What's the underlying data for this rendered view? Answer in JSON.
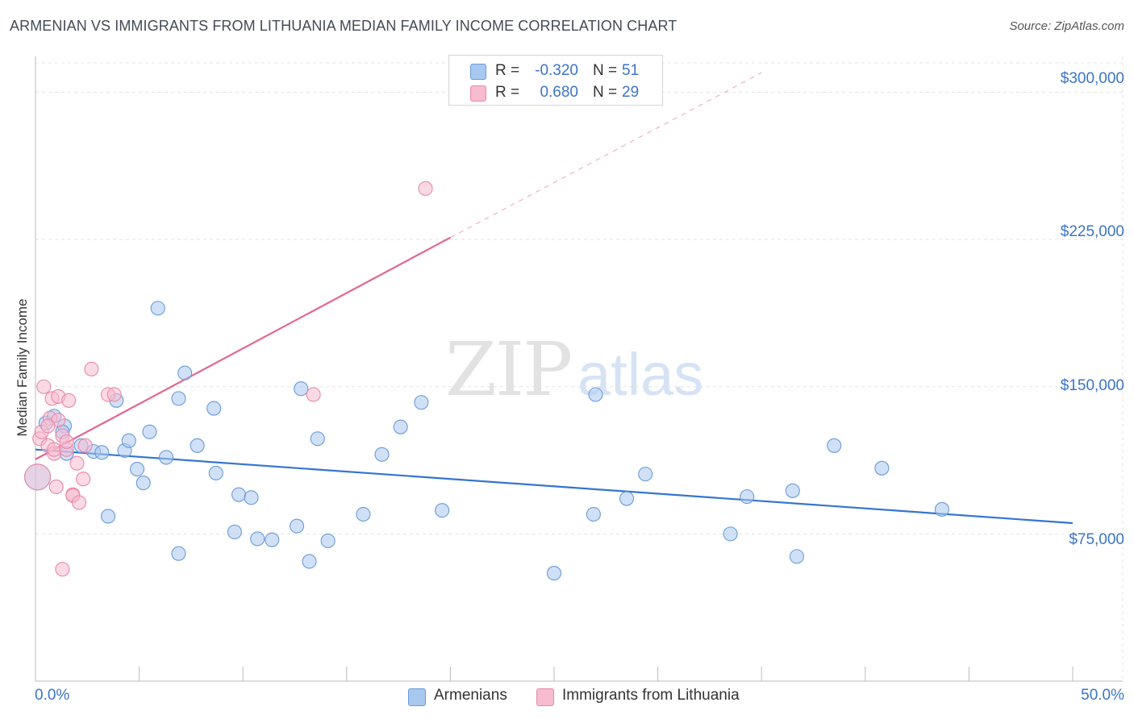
{
  "header": {
    "title": "ARMENIAN VS IMMIGRANTS FROM LITHUANIA MEDIAN FAMILY INCOME CORRELATION CHART",
    "source": "Source: ZipAtlas.com"
  },
  "watermark": {
    "zip": "ZIP",
    "atlas": "atlas"
  },
  "legend": {
    "r_label": "R =",
    "n_label": "N =",
    "series": [
      {
        "name": "Armenians",
        "r": "-0.320",
        "n": "51",
        "color": "#a9c8f0",
        "edge": "#6a9ad8"
      },
      {
        "name": "Immigrants from Lithuania",
        "r": "0.680",
        "n": "29",
        "color": "#f7bccf",
        "edge": "#e889a8"
      }
    ]
  },
  "chart_data": {
    "type": "scatter",
    "title": "ARMENIAN VS IMMIGRANTS FROM LITHUANIA MEDIAN FAMILY INCOME CORRELATION CHART",
    "xlabel": "",
    "ylabel": "Median Family Income",
    "xlim": [
      0,
      50
    ],
    "ylim": [
      0,
      315000
    ],
    "x_tick_labels": [
      "0.0%",
      "50.0%"
    ],
    "y_ticks": [
      {
        "value": 75000,
        "label": "$75,000"
      },
      {
        "value": 150000,
        "label": "$150,000"
      },
      {
        "value": 225000,
        "label": "$225,000"
      },
      {
        "value": 300000,
        "label": "$300,000"
      }
    ],
    "series": [
      {
        "name": "Armenians",
        "color": "#a9c8f0",
        "line_color": "#3575d0",
        "trend": {
          "x0": 0,
          "y0": 118000,
          "x1": 50,
          "y1": 80500,
          "dashed_to": null
        },
        "points": [
          [
            0.1,
            104000,
            "big"
          ],
          [
            0.5,
            131500
          ],
          [
            0.9,
            135000
          ],
          [
            1.4,
            130000
          ],
          [
            1.3,
            127000
          ],
          [
            1.5,
            116000
          ],
          [
            2.2,
            120000
          ],
          [
            2.8,
            117000
          ],
          [
            3.2,
            116500
          ],
          [
            4.3,
            117500
          ],
          [
            4.5,
            122500
          ],
          [
            3.5,
            84000
          ],
          [
            3.9,
            143000
          ],
          [
            4.9,
            108000
          ],
          [
            5.2,
            101000
          ],
          [
            5.5,
            127000
          ],
          [
            5.9,
            190000
          ],
          [
            6.3,
            114000
          ],
          [
            6.9,
            65000
          ],
          [
            6.9,
            144000
          ],
          [
            7.2,
            157000
          ],
          [
            7.8,
            120000
          ],
          [
            8.6,
            139000
          ],
          [
            8.7,
            106000
          ],
          [
            9.6,
            76000
          ],
          [
            9.8,
            95000
          ],
          [
            10.4,
            93500
          ],
          [
            10.7,
            72500
          ],
          [
            11.4,
            72000
          ],
          [
            12.6,
            79000
          ],
          [
            12.8,
            149000
          ],
          [
            13.2,
            61000
          ],
          [
            13.6,
            123500
          ],
          [
            14.1,
            71500
          ],
          [
            15.8,
            85000
          ],
          [
            16.7,
            115500
          ],
          [
            17.6,
            129500
          ],
          [
            18.6,
            142000
          ],
          [
            19.6,
            87000
          ],
          [
            25.0,
            55000
          ],
          [
            26.9,
            85000
          ],
          [
            27.0,
            146000
          ],
          [
            28.5,
            93000
          ],
          [
            29.4,
            105500
          ],
          [
            33.5,
            75000
          ],
          [
            34.3,
            94000
          ],
          [
            36.5,
            97000
          ],
          [
            36.7,
            63500
          ],
          [
            38.5,
            120000
          ],
          [
            40.8,
            108500
          ],
          [
            43.7,
            87500
          ]
        ]
      },
      {
        "name": "Immigrants from Lithuania",
        "color": "#f7bccf",
        "line_color": "#e3668e",
        "trend": {
          "x0": 0,
          "y0": 113000,
          "x1": 20.0,
          "y1": 226000,
          "dashed_to": {
            "x": 35,
            "y": 310000
          }
        },
        "points": [
          [
            0.1,
            104000,
            "big"
          ],
          [
            0.2,
            123500
          ],
          [
            0.3,
            127000
          ],
          [
            0.4,
            150000
          ],
          [
            0.6,
            120000
          ],
          [
            0.7,
            134000
          ],
          [
            0.8,
            144000
          ],
          [
            0.9,
            116000
          ],
          [
            0.9,
            118000
          ],
          [
            1.0,
            99000
          ],
          [
            1.1,
            145000
          ],
          [
            1.3,
            125000
          ],
          [
            1.5,
            118000
          ],
          [
            1.5,
            122000
          ],
          [
            1.6,
            143000
          ],
          [
            1.8,
            95000
          ],
          [
            1.8,
            94500
          ],
          [
            2.1,
            91000
          ],
          [
            2.0,
            111000
          ],
          [
            2.3,
            103000
          ],
          [
            2.7,
            159000
          ],
          [
            3.5,
            146000
          ],
          [
            3.8,
            146000
          ],
          [
            1.3,
            57000
          ],
          [
            13.4,
            146000
          ],
          [
            18.8,
            251000
          ],
          [
            1.1,
            133000
          ],
          [
            0.6,
            130000
          ],
          [
            2.4,
            120000
          ]
        ]
      }
    ]
  }
}
